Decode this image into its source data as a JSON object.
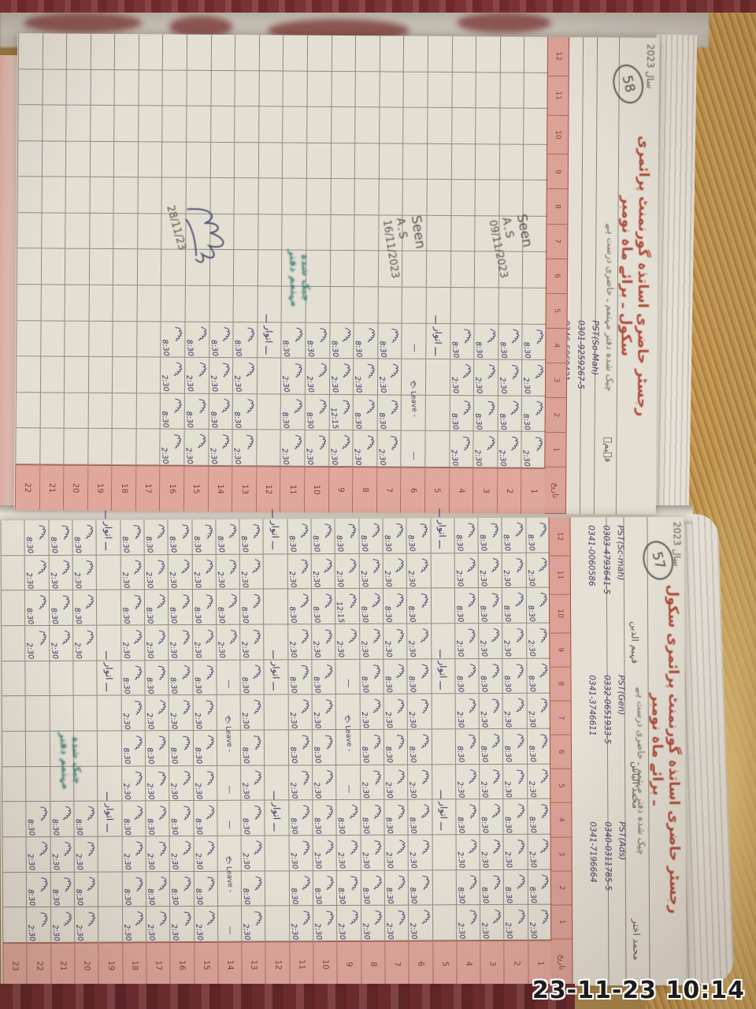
{
  "camera_timestamp": "23-11-23  10:14",
  "labels": {
    "sunday": "ـــ اتوار ـــ",
    "leave": "C- Leave -",
    "dash": "—",
    "date_header": "تاریخ"
  },
  "times": {
    "in": "8:30",
    "out": "2:30",
    "half": "12:15"
  },
  "pages": [
    {
      "key": "top",
      "page_number": "58",
      "year_note": "سال 2023",
      "title": "رجسٹر حاضری اساتذہ گورنمنٹ پرائمری سکول ـ برائے ماہ نومبر",
      "subtitle": "چیک شدہ دفتر مہتمم ـ حاضری درست ہے",
      "rows": 22,
      "days_filled": 16,
      "sundays": [
        5,
        12
      ],
      "leaves": [
        {
          "block": 2,
          "day": 6
        }
      ],
      "halfs": [
        {
          "block": 2,
          "day": 9
        }
      ],
      "staff": [
        {
          "block": 2,
          "name": "فہیمؔ",
          "post": "PST(So-Mah)",
          "phone1": "0301-9259267-5",
          "phone2": "0346-5069421"
        }
      ],
      "annotations": [
        {
          "word": "Seen",
          "initials": "A۔S",
          "date": "09/11/2023"
        },
        {
          "word": "Seen",
          "initials": "A۔S",
          "date": "16/11/2023"
        }
      ],
      "sign_date": "28/11/23",
      "stamp_line1": "چیک شدہ",
      "stamp_line2": "مہتمم دفتر"
    },
    {
      "key": "bottom",
      "page_number": "57",
      "year_note": "سال 2023",
      "title": "رجسٹر حاضری اساتذہ گورنمنٹ پرائمری سکول ـ برائے ماہ نومبر",
      "subtitle": "چیک شدہ دفتر مہتمم ـ حاضری درست ہے",
      "rows": 23,
      "days_filled": 22,
      "sundays": [
        5,
        12,
        19
      ],
      "leaves": [
        {
          "block": 1,
          "day": 9
        },
        {
          "block": 1,
          "day": 14
        },
        {
          "block": 2,
          "day": 14
        }
      ],
      "halfs": [
        {
          "block": 0,
          "day": 9
        }
      ],
      "block_limit": {
        "1": 19
      },
      "staff": [
        {
          "block": 0,
          "name": "فہیم الدین",
          "post": "PST(Sc-mah)",
          "phone1": "0303-4793641-5",
          "phone2": "0341-0060586"
        },
        {
          "block": 1,
          "name": "محمد الیاس",
          "post": "PST(Gen)",
          "phone1": "0332-0651933-5",
          "phone2": "0341-3746611"
        },
        {
          "block": 2,
          "name": "محمد اختر",
          "post": "PST(Ads)",
          "phone1": "0340-0311785-5",
          "phone2": "0341-7196664"
        }
      ],
      "stamp_line1": "چیک شدہ",
      "stamp_line2": "مہتمم دفتر"
    }
  ]
}
